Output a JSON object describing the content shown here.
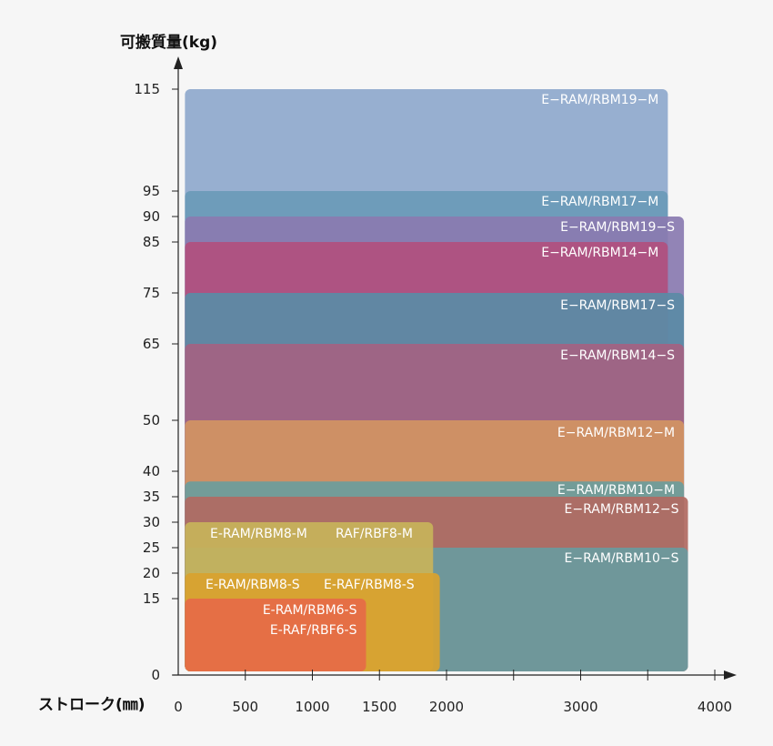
{
  "chart_data": {
    "type": "area",
    "title": "",
    "xlabel": "ストローク(㎜)",
    "ylabel": "可搬質量(kg)",
    "xlim": [
      0,
      4000
    ],
    "ylim": [
      0,
      115
    ],
    "x_ticks": [
      0,
      500,
      1000,
      1500,
      2000,
      2500,
      3000,
      3500,
      4000
    ],
    "x_tick_labels": [
      "0",
      "500",
      "1000",
      "1500",
      "2000",
      "",
      "3000",
      "",
      "4000"
    ],
    "y_ticks": [
      0,
      15,
      20,
      25,
      30,
      35,
      40,
      50,
      65,
      75,
      85,
      90,
      95,
      115
    ],
    "y_tick_labels": [
      "0",
      "15",
      "20",
      "25",
      "30",
      "35",
      "40",
      "50",
      "65",
      "75",
      "85",
      "90",
      "95",
      "115"
    ],
    "series": [
      {
        "name": "E−RAM/RBM19−M",
        "stroke_min": 50,
        "stroke_max": 3650,
        "payload_max": 115,
        "color": "#8fa9cc",
        "labels": [
          "E−RAM/RBM19−M"
        ]
      },
      {
        "name": "E−RAM/RBM17−M",
        "stroke_min": 50,
        "stroke_max": 3650,
        "payload_max": 95,
        "color": "#6b9bb8",
        "labels": [
          "E−RAM/RBM17−M"
        ]
      },
      {
        "name": "E−RAM/RBM19−S",
        "stroke_min": 50,
        "stroke_max": 3770,
        "payload_max": 90,
        "color": "#8a7bb0",
        "labels": [
          "E−RAM/RBM19−S"
        ]
      },
      {
        "name": "E−RAM/RBM14−M",
        "stroke_min": 50,
        "stroke_max": 3650,
        "payload_max": 85,
        "color": "#b0507e",
        "labels": [
          "E−RAM/RBM14−M"
        ]
      },
      {
        "name": "E−RAM/RBM17−S",
        "stroke_min": 50,
        "stroke_max": 3770,
        "payload_max": 75,
        "color": "#5b8ba6",
        "labels": [
          "E−RAM/RBM17−S"
        ]
      },
      {
        "name": "E−RAM/RBM14−S",
        "stroke_min": 50,
        "stroke_max": 3770,
        "payload_max": 65,
        "color": "#a36282",
        "labels": [
          "E−RAM/RBM14−S"
        ]
      },
      {
        "name": "E−RAM/RBM12−M",
        "stroke_min": 50,
        "stroke_max": 3770,
        "payload_max": 50,
        "color": "#d29363",
        "labels": [
          "E−RAM/RBM12−M"
        ]
      },
      {
        "name": "E−RAM/RBM10−M",
        "stroke_min": 50,
        "stroke_max": 3770,
        "payload_max": 38,
        "color": "#6c9d9c",
        "labels": [
          "E−RAM/RBM10−M"
        ]
      },
      {
        "name": "E−RAM/RBM12−S",
        "stroke_min": 50,
        "stroke_max": 3800,
        "payload_max": 35,
        "color": "#b06a62",
        "labels": [
          "E−RAM/RBM12−S"
        ]
      },
      {
        "name": "E−RAM/RBM10−S",
        "stroke_min": 50,
        "stroke_max": 3800,
        "payload_max": 25,
        "color": "#6a9a9e",
        "labels": [
          "E−RAM/RBM10−S"
        ]
      },
      {
        "name": "E-RAM/RBM8-M RAF/RBF8-M",
        "stroke_min": 50,
        "stroke_max": 1900,
        "payload_max": 30,
        "color": "#c7b35a",
        "labels": [
          "E-RAM/RBM8-M",
          "RAF/RBF8-M"
        ]
      },
      {
        "name": "E-RAM/RBM8-S E-RAF/RBM8-S",
        "stroke_min": 50,
        "stroke_max": 1950,
        "payload_max": 20,
        "color": "#d8a12e",
        "labels": [
          "E-RAM/RBM8-S",
          "E-RAF/RBM8-S"
        ]
      },
      {
        "name": "E-RAM/RBM6-S E-RAF/RBF6-S",
        "stroke_min": 50,
        "stroke_max": 1400,
        "payload_max": 15,
        "color": "#e66b47",
        "labels": [
          "E-RAM/RBM6-S",
          "E-RAF/RBF6-S"
        ]
      }
    ]
  }
}
